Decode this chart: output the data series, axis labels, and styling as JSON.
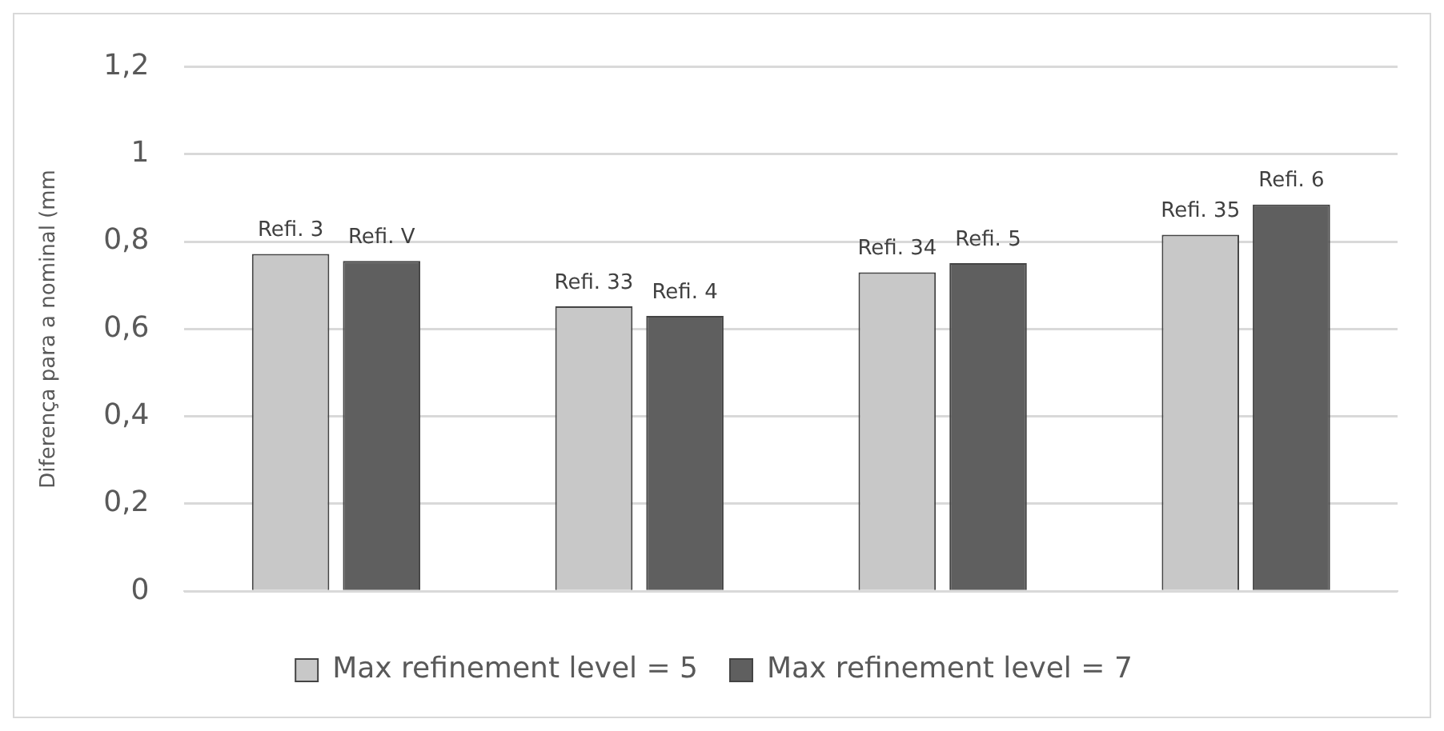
{
  "chart_data": {
    "type": "bar",
    "ylabel": "Diferença para a nominal (mm",
    "categories": [
      null,
      null,
      null,
      null
    ],
    "series": [
      {
        "name": "Max refinement level = 5",
        "color": "#c8c8c8",
        "values": [
          0.772,
          0.652,
          0.73,
          0.816
        ]
      },
      {
        "name": "Max refinement level = 7",
        "color": "#5f5f5f",
        "values": [
          0.756,
          0.63,
          0.751,
          0.885
        ]
      }
    ],
    "annotations": [
      {
        "text": "Refi. 3",
        "y": 0.772
      },
      {
        "text": "Refi. V",
        "y": 0.756
      },
      {
        "text": "Refi. 33",
        "y": 0.652
      },
      {
        "text": "Refi. 4",
        "y": 0.63
      },
      {
        "text": "Refi. 34",
        "y": 0.73
      },
      {
        "text": "Refi. 5",
        "y": 0.751
      },
      {
        "text": "Refi. 35",
        "y": 0.816
      },
      {
        "text": "Refi. 6",
        "y": 0.885
      }
    ],
    "ylim": [
      0,
      1.2
    ],
    "yticks": [
      0,
      {
        "value": 0.2,
        "label": "0,2"
      },
      {
        "value": 0.4,
        "label": "0,4"
      },
      {
        "value": 0.6,
        "label": "0,6"
      },
      {
        "value": 0.8,
        "label": "0,8"
      },
      1,
      {
        "value": 1.2,
        "label": "1,2"
      }
    ],
    "grid": "y",
    "legend": "bottom"
  }
}
